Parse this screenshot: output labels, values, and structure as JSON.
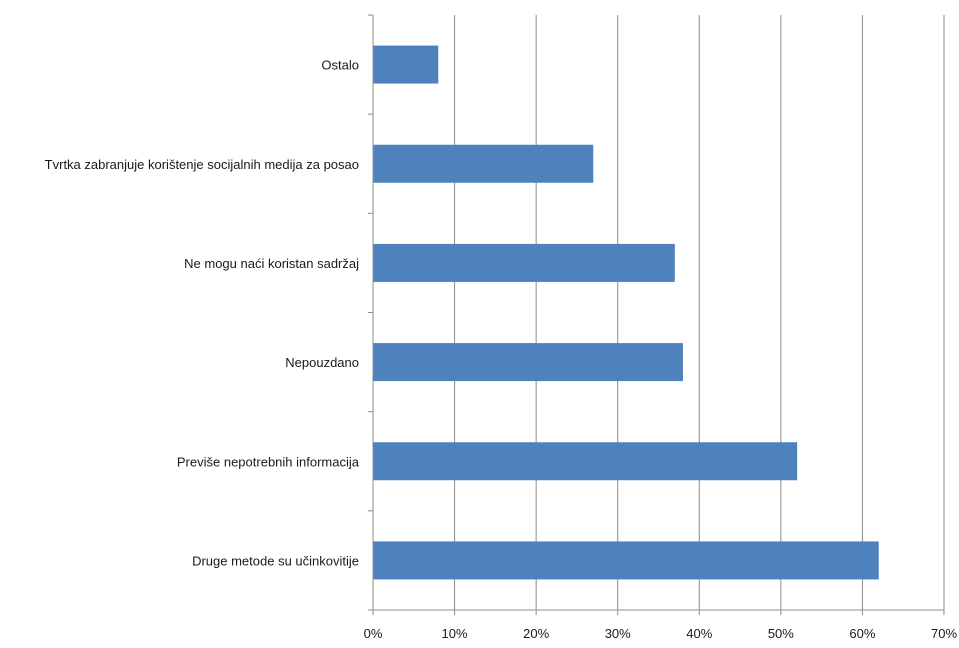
{
  "chart_data": {
    "type": "bar",
    "orientation": "horizontal",
    "categories": [
      "Ostalo",
      "Tvrtka zabranjuje korištenje socijalnih medija za posao",
      "Ne mogu naći koristan sadržaj",
      "Nepouzdano",
      "Previše nepotrebnih informacija",
      "Druge metode su učinkovitije"
    ],
    "values": [
      8,
      27,
      37,
      38,
      52,
      62
    ],
    "value_unit": "%",
    "xlim": [
      0,
      70
    ],
    "x_ticks": [
      "0%",
      "10%",
      "20%",
      "30%",
      "40%",
      "50%",
      "60%",
      "70%"
    ],
    "grid": "vertical",
    "bar_color": "#4F81BD",
    "title": "",
    "xlabel": "",
    "ylabel": ""
  }
}
